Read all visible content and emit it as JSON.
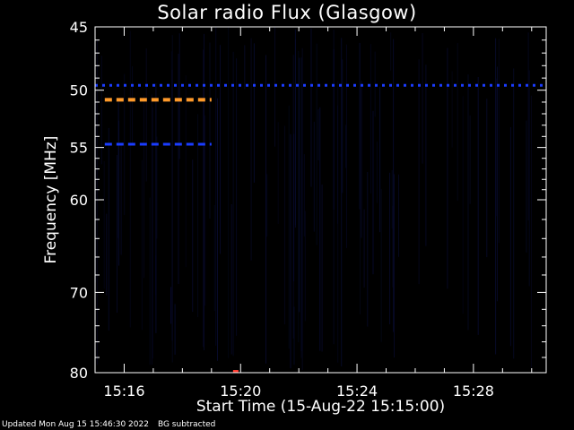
{
  "chart_data": {
    "type": "heatmap",
    "title": "Solar radio Flux (Glasgow)",
    "xlabel": "Start Time (15-Aug-22 15:15:00)",
    "ylabel": "Frequency [MHz]",
    "x_range_minutes": [
      "15:15:00",
      "15:30:30"
    ],
    "x_ticks": [
      "15:16",
      "15:20",
      "15:24",
      "15:28"
    ],
    "y_ticks": [
      45,
      50,
      55,
      60,
      70,
      80
    ],
    "ylim": [
      45,
      80
    ],
    "y_scale": "log",
    "grid": false,
    "features": [
      {
        "kind": "dashed-band",
        "freq_mhz": 49.6,
        "start": "15:15:00",
        "end": "15:30:30",
        "color": "#1a3cff"
      },
      {
        "kind": "dashed-band",
        "freq_mhz": 50.8,
        "start": "15:15:20",
        "end": "15:19:00",
        "color": "#ff9a2a"
      },
      {
        "kind": "dashed-band",
        "freq_mhz": 54.7,
        "start": "15:15:20",
        "end": "15:19:00",
        "color": "#1a3cff"
      },
      {
        "kind": "spot",
        "freq_mhz": 80,
        "time": "15:19:50",
        "color": "#ff3b2f"
      }
    ],
    "colors": {
      "background": "#000000",
      "noise": "#070a2a",
      "band_blue": "#1a3cff",
      "band_orange": "#ff9a2a",
      "hotspot": "#ff3b2f"
    }
  },
  "footer": {
    "updated": "Updated Mon Aug 15 15:46:30 2022",
    "note": "BG subtracted"
  }
}
